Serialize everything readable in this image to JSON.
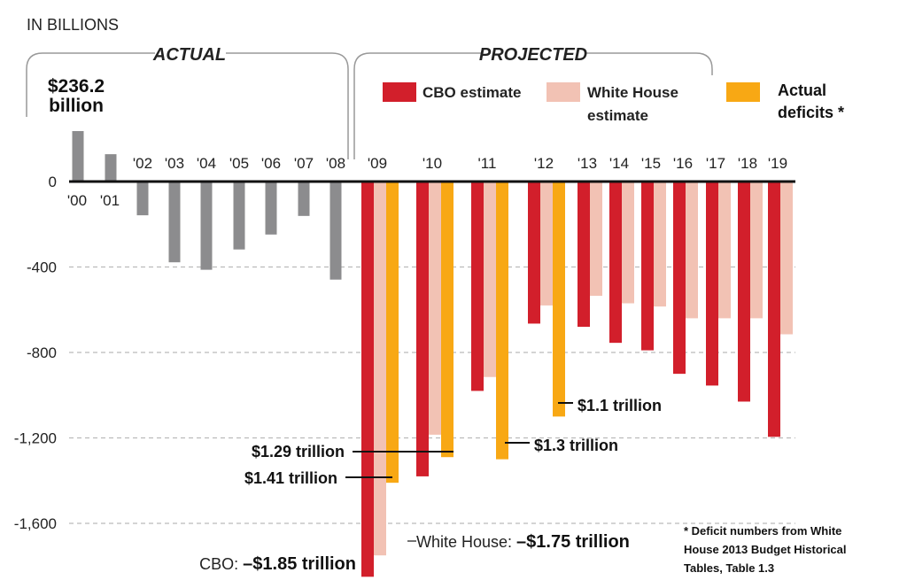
{
  "chart_data": {
    "type": "bar",
    "unit_label": "IN BILLIONS",
    "section_actual": "ACTUAL",
    "section_projected": "PROJECTED",
    "categories": [
      "'00",
      "'01",
      "'02",
      "'03",
      "'04",
      "'05",
      "'06",
      "'07",
      "'08",
      "'09",
      "'10",
      "'11",
      "'12",
      "'13",
      "'14",
      "'15",
      "'16",
      "'17",
      "'18",
      "'19"
    ],
    "ylim": [
      -1850,
      300
    ],
    "yticks": [
      "0",
      "-400",
      "-800",
      "-1,200",
      "-1,600"
    ],
    "ytick_values": [
      0,
      -400,
      -800,
      -1200,
      -1600
    ],
    "grid": "horizontal dashed",
    "legend_position": "top",
    "series": [
      {
        "name": "",
        "color": "#8c8c8e",
        "values": [
          236.2,
          128,
          -158,
          -378,
          -413,
          -318,
          -248,
          -161,
          -459,
          null,
          null,
          null,
          null,
          null,
          null,
          null,
          null,
          null,
          null,
          null
        ]
      },
      {
        "name": "CBO estimate",
        "color": "#d21f2b",
        "values": [
          null,
          null,
          null,
          null,
          null,
          null,
          null,
          null,
          null,
          -1850,
          -1380,
          -980,
          -665,
          -680,
          -755,
          -790,
          -900,
          -955,
          -1030,
          -1195
        ]
      },
      {
        "name": "White House estimate",
        "color": "#f2c2b4",
        "values": [
          null,
          null,
          null,
          null,
          null,
          null,
          null,
          null,
          null,
          -1750,
          -1185,
          -915,
          -580,
          -535,
          -570,
          -585,
          -640,
          -640,
          -640,
          -715
        ]
      },
      {
        "name": "Actual deficits *",
        "color": "#f8a814",
        "values": [
          null,
          null,
          null,
          null,
          null,
          null,
          null,
          null,
          null,
          -1410,
          -1290,
          -1300,
          -1100,
          null,
          null,
          null,
          null,
          null,
          null,
          null
        ]
      }
    ],
    "legend": {
      "cbo": "CBO estimate",
      "wh_line1": "White House",
      "wh_line2": "estimate",
      "actual_line1": "Actual",
      "actual_line2": "deficits *"
    },
    "annotations": {
      "peak_line1": "$236.2",
      "peak_line2": "billion",
      "a09": "$1.41 trillion",
      "a10": "$1.29 trillion",
      "a11": "$1.3 trillion",
      "a12": "$1.1 trillion",
      "cbo_prefix": "CBO: ",
      "cbo_value": "–$1.85 trillion",
      "wh_prefix": "White House: ",
      "wh_value": "–$1.75 trillion"
    },
    "footnote": [
      "* Deficit numbers from White",
      "House 2013 Budget Historical",
      "Tables, Table 1.3"
    ]
  }
}
